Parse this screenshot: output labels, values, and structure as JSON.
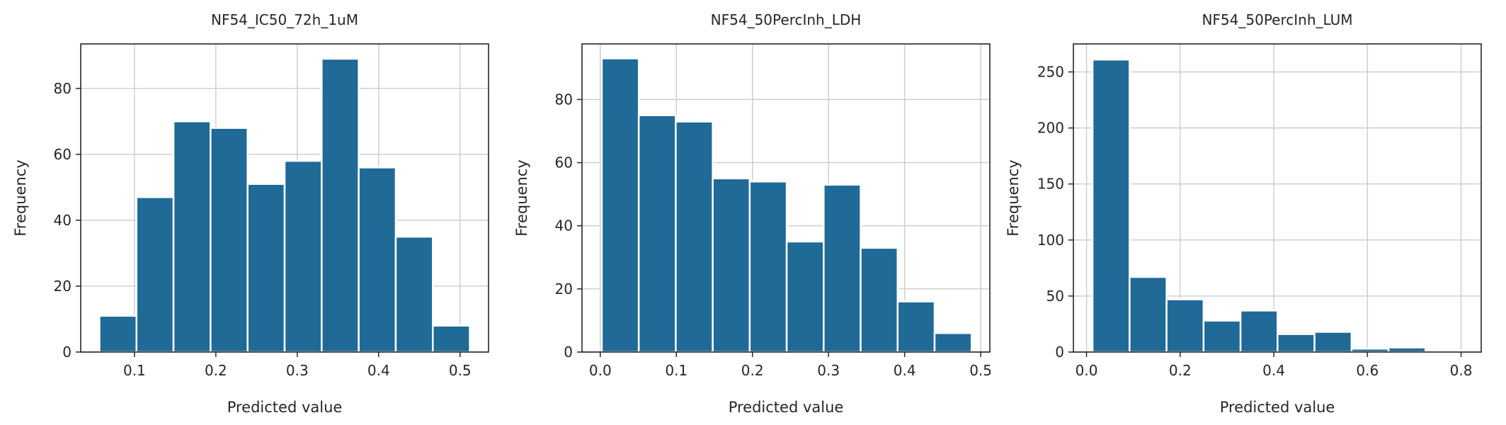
{
  "figure": {
    "bar_color": "#1f6a96",
    "grid": true
  },
  "chart_data": [
    {
      "type": "bar",
      "title": "NF54_IC50_72h_1uM",
      "xlabel": "Predicted value",
      "ylabel": "Frequency",
      "bin_edges": [
        0.057,
        0.1025,
        0.148,
        0.1935,
        0.239,
        0.2845,
        0.33,
        0.3755,
        0.421,
        0.4665,
        0.512
      ],
      "values": [
        11,
        47,
        70,
        68,
        51,
        58,
        89,
        56,
        35,
        8
      ],
      "xlim": [
        0.034,
        0.535
      ],
      "ylim": [
        0,
        93.5
      ],
      "xticks": [
        {
          "value": 0.1,
          "label": "0.1"
        },
        {
          "value": 0.2,
          "label": "0.2"
        },
        {
          "value": 0.3,
          "label": "0.3"
        },
        {
          "value": 0.4,
          "label": "0.4"
        },
        {
          "value": 0.5,
          "label": "0.5"
        }
      ],
      "yticks": [
        {
          "value": 0,
          "label": "0"
        },
        {
          "value": 20,
          "label": "20"
        },
        {
          "value": 40,
          "label": "40"
        },
        {
          "value": 60,
          "label": "60"
        },
        {
          "value": 80,
          "label": "80"
        }
      ]
    },
    {
      "type": "bar",
      "title": "NF54_50PercInh_LDH",
      "xlabel": "Predicted value",
      "ylabel": "Frequency",
      "bin_edges": [
        0.002,
        0.0506,
        0.0992,
        0.1478,
        0.1964,
        0.245,
        0.2936,
        0.3422,
        0.3908,
        0.4394,
        0.488
      ],
      "values": [
        93,
        75,
        73,
        55,
        54,
        35,
        53,
        33,
        16,
        6
      ],
      "xlim": [
        -0.024,
        0.512
      ],
      "ylim": [
        0,
        97.6
      ],
      "xticks": [
        {
          "value": 0.0,
          "label": "0.0"
        },
        {
          "value": 0.1,
          "label": "0.1"
        },
        {
          "value": 0.2,
          "label": "0.2"
        },
        {
          "value": 0.3,
          "label": "0.3"
        },
        {
          "value": 0.4,
          "label": "0.4"
        },
        {
          "value": 0.5,
          "label": "0.5"
        }
      ],
      "yticks": [
        {
          "value": 0,
          "label": "0"
        },
        {
          "value": 20,
          "label": "20"
        },
        {
          "value": 40,
          "label": "40"
        },
        {
          "value": 60,
          "label": "60"
        },
        {
          "value": 80,
          "label": "80"
        }
      ]
    },
    {
      "type": "bar",
      "title": "NF54_50PercInh_LUM",
      "xlabel": "Predicted value",
      "ylabel": "Frequency",
      "bin_edges": [
        0.013,
        0.092,
        0.171,
        0.25,
        0.329,
        0.408,
        0.487,
        0.566,
        0.645,
        0.724,
        0.803
      ],
      "values": [
        261,
        67,
        47,
        28,
        37,
        16,
        18,
        3,
        4,
        1
      ],
      "xlim": [
        -0.028,
        0.843
      ],
      "ylim": [
        0,
        275
      ],
      "xticks": [
        {
          "value": 0.0,
          "label": "0.0"
        },
        {
          "value": 0.2,
          "label": "0.2"
        },
        {
          "value": 0.4,
          "label": "0.4"
        },
        {
          "value": 0.6,
          "label": "0.6"
        },
        {
          "value": 0.8,
          "label": "0.8"
        }
      ],
      "yticks": [
        {
          "value": 0,
          "label": "0"
        },
        {
          "value": 50,
          "label": "50"
        },
        {
          "value": 100,
          "label": "100"
        },
        {
          "value": 150,
          "label": "150"
        },
        {
          "value": 200,
          "label": "200"
        },
        {
          "value": 250,
          "label": "250"
        }
      ]
    }
  ]
}
